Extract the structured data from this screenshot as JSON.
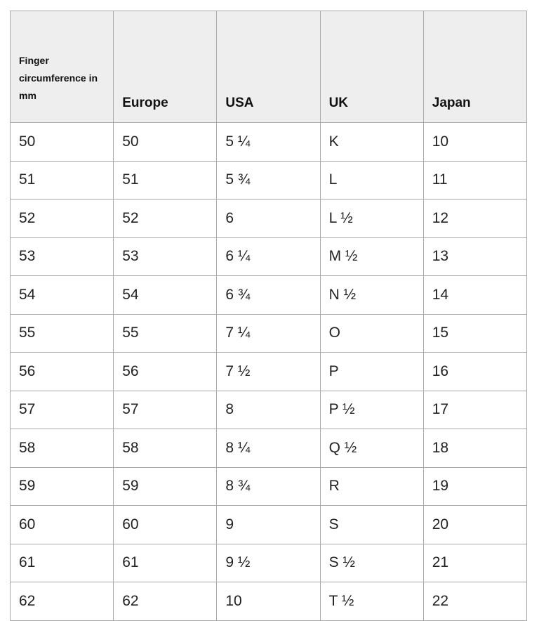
{
  "table": {
    "headers": [
      "Finger circumference in mm",
      "Europe",
      "USA",
      "UK",
      "Japan"
    ],
    "rows": [
      [
        "50",
        "50",
        "5 ¼",
        "K",
        "10"
      ],
      [
        "51",
        "51",
        "5 ¾",
        "L",
        "11"
      ],
      [
        "52",
        "52",
        "6",
        "L ½",
        "12"
      ],
      [
        "53",
        "53",
        "6 ¼",
        "M ½",
        "13"
      ],
      [
        "54",
        "54",
        "6 ¾",
        "N ½",
        "14"
      ],
      [
        "55",
        "55",
        "7 ¼",
        "O",
        "15"
      ],
      [
        "56",
        "56",
        "7 ½",
        "P",
        "16"
      ],
      [
        "57",
        "57",
        "8",
        "P ½",
        "17"
      ],
      [
        "58",
        "58",
        "8 ¼",
        "Q ½",
        "18"
      ],
      [
        "59",
        "59",
        "8 ¾",
        "R",
        "19"
      ],
      [
        "60",
        "60",
        "9",
        "S",
        "20"
      ],
      [
        "61",
        "61",
        "9 ½",
        "S ½",
        "21"
      ],
      [
        "62",
        "62",
        "10",
        "T ½",
        "22"
      ]
    ]
  }
}
